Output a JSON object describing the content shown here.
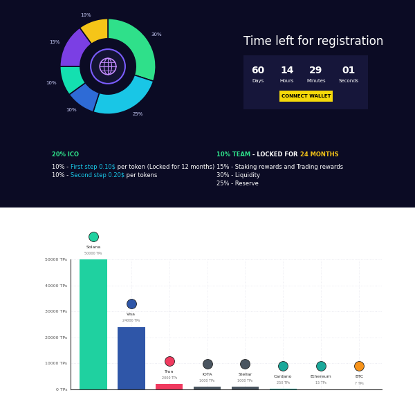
{
  "donut": {
    "segments": [
      {
        "value": 30,
        "label": "30%",
        "color": "#2fe08a"
      },
      {
        "value": 25,
        "label": "25%",
        "color": "#19c6e6"
      },
      {
        "value": 10,
        "label": "10%",
        "color": "#2e6bd6"
      },
      {
        "value": 10,
        "label": "10%",
        "color": "#14e0b0"
      },
      {
        "value": 15,
        "label": "15%",
        "color": "#7b3fe4"
      },
      {
        "value": 10,
        "label": "10%",
        "color": "#f5c518"
      }
    ]
  },
  "countdown": {
    "title": "Time left for registration",
    "units": [
      {
        "value": "60",
        "label": "Days"
      },
      {
        "value": "14",
        "label": "Hours"
      },
      {
        "value": "29",
        "label": "Minutes"
      },
      {
        "value": "01",
        "label": "Seconds"
      }
    ],
    "button": "CONNECT WALLET"
  },
  "tokenomics": {
    "columns": [
      {
        "header": [
          {
            "text": "20% ICO",
            "color": "#2fe08a"
          }
        ],
        "lines": [
          [
            {
              "text": "10% - ",
              "color": "#ffffff"
            },
            {
              "text": "First step 0.10$",
              "color": "#19c6e6"
            },
            {
              "text": " per token (Locked for 12 months)",
              "color": "#ffffff"
            }
          ],
          [
            {
              "text": "10% - ",
              "color": "#ffffff"
            },
            {
              "text": "Second step 0.20$",
              "color": "#19c6e6"
            },
            {
              "text": " per tokens",
              "color": "#ffffff"
            }
          ]
        ]
      },
      {
        "header": [
          {
            "text": "10% TEAM",
            "color": "#2fe08a"
          },
          {
            "text": " - LOCKED FOR ",
            "color": "#ffffff"
          },
          {
            "text": "24 MONTHS",
            "color": "#f5c518"
          }
        ],
        "lines": [
          [
            {
              "text": "15% - Staking rewards and Trading rewards",
              "color": "#ffffff"
            }
          ],
          [
            {
              "text": "30% - Liquidity",
              "color": "#ffffff"
            }
          ],
          [
            {
              "text": "25% - Reserve",
              "color": "#ffffff"
            }
          ]
        ]
      }
    ]
  },
  "chart_data": {
    "type": "bar",
    "categories": [
      "Solana",
      "Visa",
      "Tron",
      "IOTA",
      "Stellar",
      "Cardano",
      "Ethereum",
      "BTC"
    ],
    "values": [
      50000,
      24000,
      2000,
      1000,
      1000,
      250,
      15,
      7
    ],
    "value_labels": [
      "50000 TPs",
      "24000 TPs",
      "2000 TPs",
      "1000 TPs",
      "1000 TPs",
      "250 TPs",
      "15 TPs",
      "7 TPs"
    ],
    "colors": [
      "#1fd1a0",
      "#2f56a8",
      "#f03a5f",
      "#4a5560",
      "#4a5560",
      "#1aa89a",
      "#1aa89a",
      "#f7931a"
    ],
    "ylim": [
      0,
      50000
    ],
    "yticks": [
      {
        "value": 0,
        "label": "0 TPs"
      },
      {
        "value": 10000,
        "label": "10000 TPs"
      },
      {
        "value": 20000,
        "label": "20000 TPs"
      },
      {
        "value": 30000,
        "label": "30000 TPs"
      },
      {
        "value": 40000,
        "label": "40000 TPs"
      },
      {
        "value": 50000,
        "label": "50000 TPs"
      }
    ],
    "grid": true,
    "data_labels": true,
    "tick_labels": "y"
  }
}
